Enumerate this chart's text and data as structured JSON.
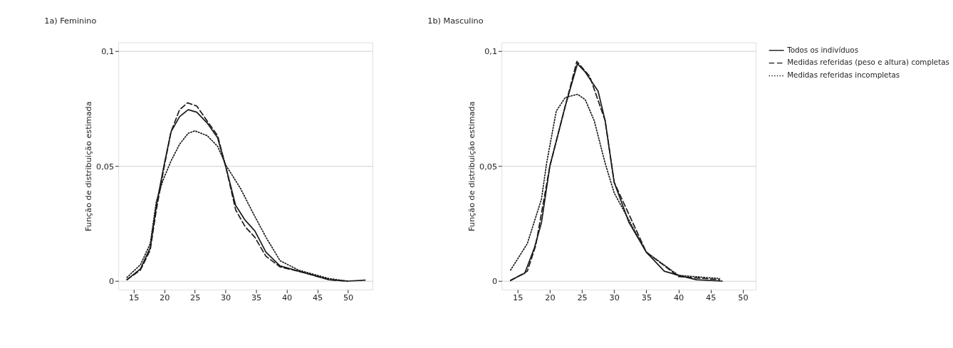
{
  "chart_data": [
    {
      "type": "line",
      "title": "1a) Feminino",
      "ylabel": "Função de distribuição estimada",
      "xlim": [
        12.5,
        54
      ],
      "ylim": [
        -0.0037,
        0.1039
      ],
      "xticks": [
        15,
        20,
        25,
        30,
        35,
        40,
        45,
        50
      ],
      "yticks": [
        {
          "value": 0,
          "label": "0"
        },
        {
          "value": 0.05,
          "label": "0,05"
        },
        {
          "value": 0.1,
          "label": "0,1"
        }
      ],
      "grid": "y",
      "legend": "top right",
      "series": [
        {
          "name": "Todos os indivíduos",
          "color": "#1a1a1a",
          "line_style": "solid",
          "x": [
            13.9,
            16.1,
            17.7,
            18.7,
            20,
            21.1,
            22.5,
            23.9,
            25.3,
            27,
            28.7,
            30.07,
            31.65,
            33.2,
            34.8,
            36.6,
            38.9,
            42.5,
            46.9,
            49.9,
            52.8
          ],
          "values": [
            0.0006,
            0.0053,
            0.0145,
            0.033,
            0.051,
            0.065,
            0.0716,
            0.0746,
            0.0735,
            0.0688,
            0.0624,
            0.0495,
            0.033,
            0.0265,
            0.0218,
            0.0126,
            0.0066,
            0.0039,
            0.0006,
            0,
            0.0004
          ]
        },
        {
          "name": "Medidas referidas (peso e altura) completas",
          "color": "#1a1a1a",
          "line_style": "dashed",
          "x": [
            13.9,
            16.1,
            17.7,
            18.7,
            20,
            21.1,
            22.5,
            23.8,
            25.3,
            27,
            28.7,
            30.07,
            31.65,
            33.2,
            34.8,
            36.6,
            38.9,
            42.5,
            46.9,
            49.9
          ],
          "values": [
            0.0006,
            0.0048,
            0.0135,
            0.031,
            0.05,
            0.065,
            0.0746,
            0.0776,
            0.0762,
            0.0697,
            0.0633,
            0.0495,
            0.031,
            0.0237,
            0.019,
            0.0108,
            0.0062,
            0.0039,
            0.0006,
            0
          ]
        },
        {
          "name": "Medidas referidas incompletas",
          "color": "#1a1a1a",
          "line_style": "dotted",
          "x": [
            13.9,
            16.1,
            17.7,
            18.7,
            19.8,
            21.1,
            22.5,
            23.9,
            25,
            27,
            28.7,
            30.07,
            32.45,
            34.4,
            36.6,
            38.9,
            41.9,
            46.9,
            49.9
          ],
          "values": [
            0.0016,
            0.0071,
            0.0163,
            0.0347,
            0.044,
            0.0523,
            0.0596,
            0.0643,
            0.0654,
            0.0633,
            0.0587,
            0.0504,
            0.0403,
            0.0301,
            0.0191,
            0.0089,
            0.0048,
            0.0011,
            0
          ]
        }
      ]
    },
    {
      "type": "line",
      "title": "1b) Masculino",
      "ylabel": "Função de distribuição estimada",
      "xlim": [
        12.5,
        52
      ],
      "ylim": [
        -0.0037,
        0.1039
      ],
      "xticks": [
        15,
        20,
        25,
        30,
        35,
        40,
        45,
        50
      ],
      "yticks": [
        {
          "value": 0,
          "label": "0"
        },
        {
          "value": 0.05,
          "label": "0,05"
        },
        {
          "value": 0.1,
          "label": "0,1"
        }
      ],
      "grid": "y",
      "legend": "top right",
      "series": [
        {
          "name": "Todos os indivíduos",
          "color": "#1a1a1a",
          "line_style": "solid",
          "x": [
            13.9,
            16.1,
            17.6,
            18.7,
            20,
            22.4,
            24.3,
            25.5,
            27.5,
            28.6,
            30,
            32.3,
            35,
            37.8,
            40,
            42.8,
            46.8
          ],
          "values": [
            0.0004,
            0.0034,
            0.0145,
            0.0255,
            0.05,
            0.0762,
            0.0946,
            0.091,
            0.0827,
            0.0698,
            0.043,
            0.0255,
            0.0126,
            0.0043,
            0.0025,
            0.0006,
            0
          ]
        },
        {
          "name": "Medidas referidas (peso e altura) completas",
          "color": "#1a1a1a",
          "line_style": "dashed",
          "x": [
            13.9,
            16.5,
            17.8,
            20,
            22.4,
            24.2,
            26.2,
            28.6,
            30,
            35,
            40,
            46.4
          ],
          "values": [
            0.0002,
            0.0043,
            0.0154,
            0.05,
            0.0762,
            0.0956,
            0.0891,
            0.0698,
            0.043,
            0.0126,
            0.002,
            0.0006
          ]
        },
        {
          "name": "Medidas referidas incompletas",
          "color": "#1a1a1a",
          "line_style": "dotted",
          "x": [
            13.9,
            16.5,
            18.7,
            19.5,
            21,
            22.4,
            24.3,
            25.5,
            26.9,
            28.6,
            30,
            35,
            40,
            46.4
          ],
          "values": [
            0.0048,
            0.0163,
            0.0357,
            0.0513,
            0.074,
            0.0799,
            0.0813,
            0.079,
            0.0698,
            0.0513,
            0.0384,
            0.0126,
            0.0025,
            0.0011
          ]
        }
      ]
    }
  ]
}
